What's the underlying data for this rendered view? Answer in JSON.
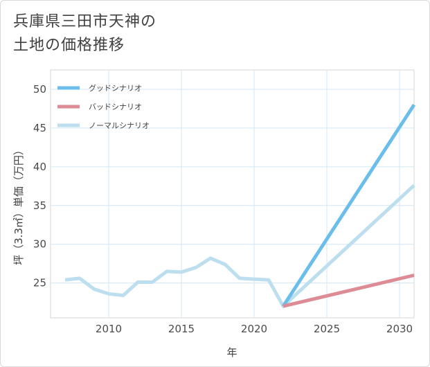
{
  "title_lines": [
    "兵庫県三田市天神の",
    "土地の価格推移"
  ],
  "chart_data": {
    "type": "line",
    "xlabel": "年",
    "ylabel": "坪（3.3㎡）単価（万円）",
    "xlim": [
      2006,
      2031
    ],
    "ylim": [
      20.5,
      52.5
    ],
    "xticks": [
      2010,
      2015,
      2020,
      2025,
      2030
    ],
    "yticks": [
      25,
      30,
      35,
      40,
      45,
      50
    ],
    "grid": true,
    "legend_position": "top-left",
    "series": [
      {
        "name": "グッドシナリオ",
        "color": "#6bbdec",
        "x": [
          2022,
          2031
        ],
        "y": [
          22.0,
          48.0
        ]
      },
      {
        "name": "バッドシナリオ",
        "color": "#dd8c96",
        "x": [
          2022,
          2031
        ],
        "y": [
          22.0,
          26.0
        ]
      },
      {
        "name": "ノーマルシナリオ",
        "color": "#bcdeee",
        "x": [
          2007,
          2008,
          2009,
          2010,
          2011,
          2012,
          2013,
          2014,
          2015,
          2016,
          2017,
          2018,
          2019,
          2020,
          2021,
          2022,
          2031
        ],
        "y": [
          25.4,
          25.6,
          24.2,
          23.6,
          23.4,
          25.1,
          25.1,
          26.5,
          26.4,
          27.0,
          28.2,
          27.4,
          25.6,
          25.5,
          25.4,
          22.0,
          37.6
        ]
      }
    ]
  }
}
